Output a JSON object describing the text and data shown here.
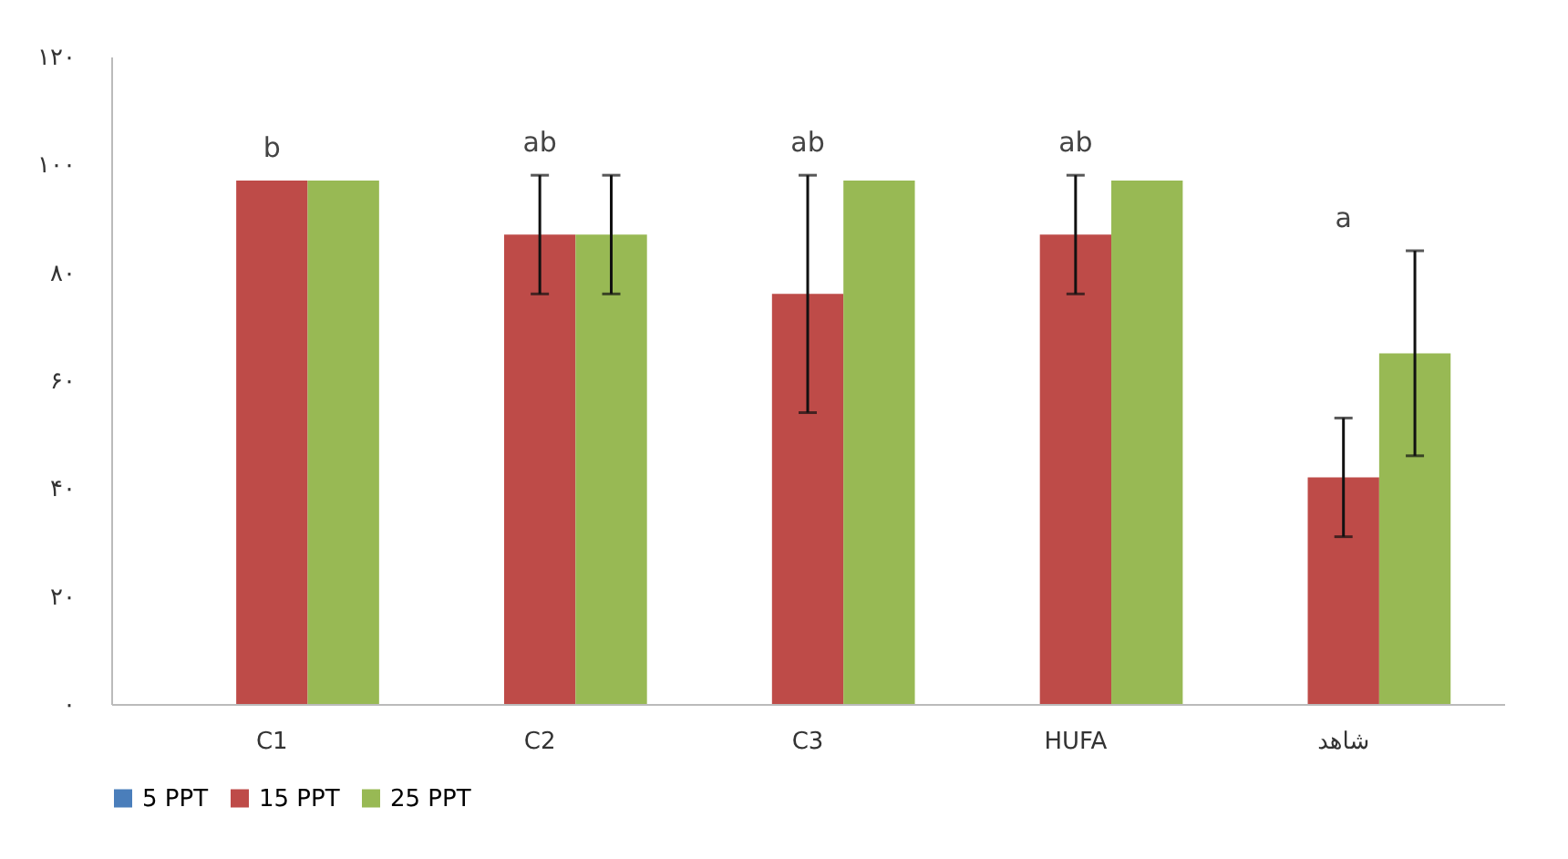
{
  "chart_data": {
    "type": "bar",
    "categories": [
      "C1",
      "C2",
      "C3",
      "HUFA",
      "شاهد"
    ],
    "series": [
      {
        "name": "5 PPT",
        "color": "#4a7ebb",
        "values": [
          null,
          null,
          null,
          null,
          null
        ]
      },
      {
        "name": "15 PPT",
        "color": "#be4b48",
        "values": [
          97,
          87,
          76,
          87,
          42
        ],
        "errors": [
          null,
          11,
          22,
          11,
          11
        ]
      },
      {
        "name": "25 PPT",
        "color": "#98b954",
        "values": [
          97,
          87,
          97,
          97,
          65
        ],
        "errors": [
          null,
          11,
          null,
          null,
          19
        ]
      }
    ],
    "ylim": [
      0,
      120
    ],
    "yticks": [
      {
        "value": 0,
        "label": "۰"
      },
      {
        "value": 20,
        "label": "۲۰"
      },
      {
        "value": 40,
        "label": "۴۰"
      },
      {
        "value": 60,
        "label": "۶۰"
      },
      {
        "value": 80,
        "label": "۸۰"
      },
      {
        "value": 100,
        "label": "۱۰۰"
      },
      {
        "value": 120,
        "label": "۱۲۰"
      }
    ],
    "annotations": [
      "b",
      "ab",
      "ab",
      "ab",
      "a"
    ],
    "grid": false,
    "legend": "bottom"
  }
}
